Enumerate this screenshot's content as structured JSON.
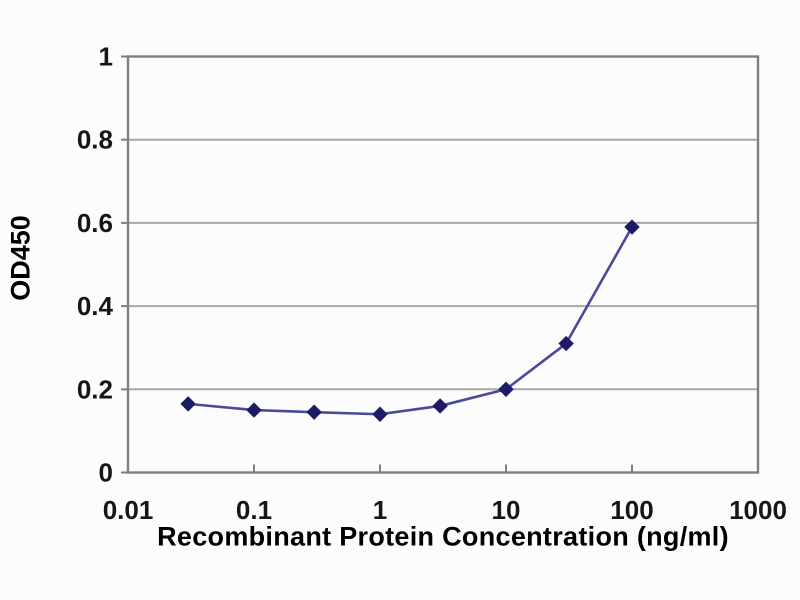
{
  "page": {
    "background": "#fcfcfc",
    "text_color": "#161616"
  },
  "chart_data": {
    "type": "line",
    "title": "",
    "xlabel": "Recombinant Protein Concentration (ng/ml)",
    "ylabel": "OD450",
    "x_scale": "log",
    "xlim": [
      0.01,
      1000
    ],
    "ylim": [
      0,
      1
    ],
    "x_tick_values": [
      0.01,
      0.1,
      1,
      10,
      100,
      1000
    ],
    "x_tick_labels": [
      "0.01",
      "0.1",
      "1",
      "10",
      "100",
      "1000"
    ],
    "y_tick_values": [
      0,
      0.2,
      0.4,
      0.6,
      0.8,
      1
    ],
    "y_tick_labels": [
      "0",
      "0.2",
      "0.4",
      "0.6",
      "0.8",
      "1"
    ],
    "grid": "horizontal-only",
    "legend": "none",
    "axis_color": "#7f7f7f",
    "grid_color": "#a8a8a8",
    "series": [
      {
        "marker": "diamond",
        "line_color": "#4a4a9b",
        "marker_color": "#1c1c66",
        "points": [
          {
            "x": 0.03,
            "y": 0.165
          },
          {
            "x": 0.1,
            "y": 0.15
          },
          {
            "x": 0.3,
            "y": 0.145
          },
          {
            "x": 1,
            "y": 0.14
          },
          {
            "x": 3,
            "y": 0.16
          },
          {
            "x": 10,
            "y": 0.2
          },
          {
            "x": 30,
            "y": 0.31
          },
          {
            "x": 100,
            "y": 0.59
          }
        ]
      }
    ]
  }
}
